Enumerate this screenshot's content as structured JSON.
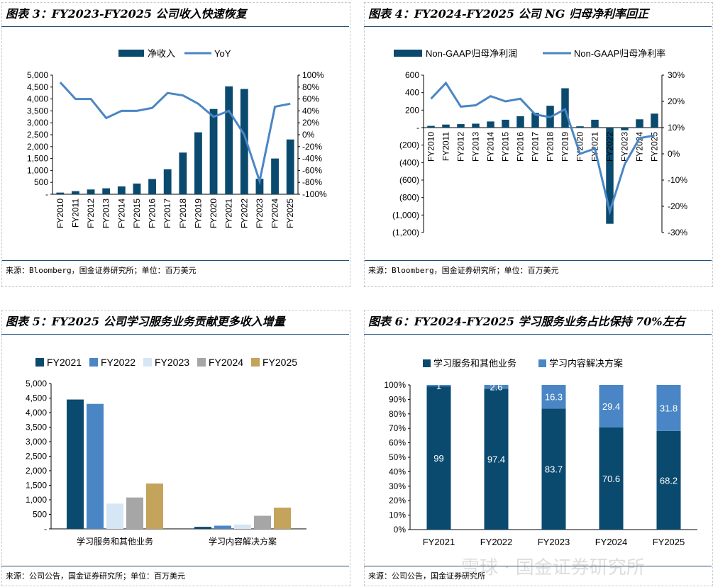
{
  "panels": [
    {
      "title": "图表 3：FY2023-FY2025 公司收入快速恢复",
      "source": "来源：Bloomberg，国金证券研究所；单位：百万美元"
    },
    {
      "title": "图表 4：FY2024-FY2025 公司 NG 归母净利率回正",
      "source": "来源：Bloomberg，国金证券研究所；单位：百万美元"
    },
    {
      "title": "图表 5：FY2025 公司学习服务业务贡献更多收入增量",
      "source": "来源：公司公告，国金证券研究所；单位：百万美元"
    },
    {
      "title": "图表 6：FY2024-FY2025 学习服务业务占比保持 70%左右",
      "source": "来源：公司公告，国金证券研究所"
    }
  ],
  "watermark": "雪球 · 国金证券研究所",
  "colors": {
    "navy": "#0b4a6f",
    "blue": "#4a86c5",
    "light": "#d6e6f4",
    "gray": "#a6a6a6",
    "gold": "#c4a35a",
    "line": "#4a86c5",
    "rule": "#1f4e79"
  },
  "chart_data": [
    {
      "type": "bar+line",
      "categories": [
        "FY2010",
        "FY2011",
        "FY2012",
        "FY2013",
        "FY2014",
        "FY2015",
        "FY2016",
        "FY2017",
        "FY2018",
        "FY2019",
        "FY2020",
        "FY2021",
        "FY2022",
        "FY2023",
        "FY2024",
        "FY2025"
      ],
      "series": [
        {
          "name": "净收入",
          "type": "bar",
          "axis": "left",
          "values": [
            70,
            130,
            200,
            250,
            330,
            450,
            640,
            1050,
            1750,
            2600,
            3580,
            4530,
            4420,
            650,
            1500,
            2300
          ]
        },
        {
          "name": "YoY",
          "type": "line",
          "axis": "right",
          "values": [
            88,
            60,
            60,
            28,
            40,
            40,
            45,
            70,
            66,
            52,
            30,
            40,
            0,
            -78,
            47,
            52
          ]
        }
      ],
      "yticks_left": [
        "5,000",
        "4,500",
        "4,000",
        "3,500",
        "3,000",
        "2,500",
        "2,000",
        "1,500",
        "1,000",
        "500",
        "-"
      ],
      "yticks_right": [
        "100%",
        "80%",
        "60%",
        "40%",
        "20%",
        "0%",
        "-20%",
        "-40%",
        "-60%",
        "-80%",
        "-100%"
      ],
      "ylim_left": [
        0,
        5000
      ],
      "ylim_right": [
        -100,
        100
      ],
      "legend": "top"
    },
    {
      "type": "bar+line",
      "categories": [
        "FY2010",
        "FY2011",
        "FY2012",
        "FY2013",
        "FY2014",
        "FY2015",
        "FY2016",
        "FY2017",
        "FY2018",
        "FY2019",
        "FY2020",
        "FY2021",
        "FY2022",
        "FY2023",
        "FY2024",
        "FY2025"
      ],
      "series": [
        {
          "name": "Non-GAAP归母净利润",
          "type": "bar",
          "axis": "left",
          "values": [
            20,
            35,
            40,
            45,
            70,
            90,
            130,
            170,
            250,
            450,
            15,
            90,
            -1100,
            -30,
            95,
            160
          ]
        },
        {
          "name": "Non-GAAP归母净利率",
          "type": "line",
          "axis": "right",
          "values": [
            21,
            27,
            18,
            18.5,
            22,
            20,
            21,
            15,
            14,
            17,
            0,
            2,
            -22,
            -4,
            6,
            7
          ]
        }
      ],
      "yticks_left": [
        "600",
        "400",
        "200",
        "-",
        "(200)",
        "(400)",
        "(600)",
        "(800)",
        "(1,000)",
        "(1,200)"
      ],
      "yticks_right": [
        "30%",
        "20%",
        "10%",
        "0%",
        "-10%",
        "-20%",
        "-30%"
      ],
      "ylim_left": [
        -1200,
        600
      ],
      "ylim_right": [
        -30,
        30
      ],
      "legend": "top"
    },
    {
      "type": "bar",
      "categories": [
        "学习服务和其他业务",
        "学习内容解决方案"
      ],
      "series": [
        {
          "name": "FY2021",
          "values": [
            4450,
            70
          ]
        },
        {
          "name": "FY2022",
          "values": [
            4300,
            110
          ]
        },
        {
          "name": "FY2023",
          "values": [
            870,
            150
          ]
        },
        {
          "name": "FY2024",
          "values": [
            1080,
            450
          ]
        },
        {
          "name": "FY2025",
          "values": [
            1560,
            730
          ]
        }
      ],
      "yticks": [
        "5,000",
        "4,500",
        "4,000",
        "3,500",
        "3,000",
        "2,500",
        "2,000",
        "1,500",
        "1,000",
        "500",
        "-"
      ],
      "ylim": [
        0,
        5000
      ],
      "legend": "top"
    },
    {
      "type": "stacked-bar",
      "categories": [
        "FY2021",
        "FY2022",
        "FY2023",
        "FY2024",
        "FY2025"
      ],
      "series": [
        {
          "name": "学习服务和其他业务",
          "values": [
            99,
            97.4,
            83.7,
            70.6,
            68.2
          ]
        },
        {
          "name": "学习内容解决方案",
          "values": [
            1,
            2.6,
            16.3,
            29.4,
            31.8
          ]
        }
      ],
      "data_labels": [
        [
          "99",
          "1"
        ],
        [
          "97.4",
          "2.6"
        ],
        [
          "83.7",
          "16.3"
        ],
        [
          "70.6",
          "29.4"
        ],
        [
          "68.2",
          "31.8"
        ]
      ],
      "yticks": [
        "100%",
        "90%",
        "80%",
        "70%",
        "60%",
        "50%",
        "40%",
        "30%",
        "20%",
        "10%",
        "0%"
      ],
      "ylim": [
        0,
        100
      ],
      "legend": "top"
    }
  ]
}
